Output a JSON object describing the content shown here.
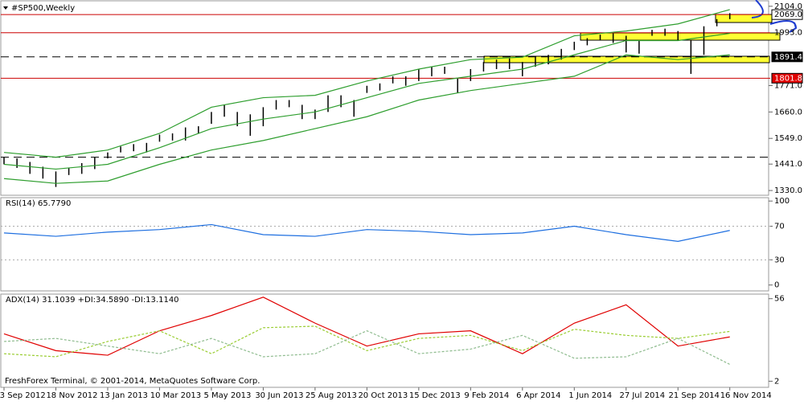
{
  "chart_data": [
    {
      "type": "ohlc",
      "title": "#SP500,Weekly",
      "footer": "FreshForex Terminal, © 2001-2014, MetaQuotes Software Corp.",
      "categories": [
        "23 Sep 2012",
        "18 Nov 2012",
        "13 Jan 2013",
        "10 Mar 2013",
        "5 May 2013",
        "30 Jun 2013",
        "25 Aug 2013",
        "20 Oct 2013",
        "15 Dec 2013",
        "9 Feb 2014",
        "6 Apr 2014",
        "1 Jun 2014",
        "27 Jul 2014",
        "21 Sep 2014",
        "16 Nov 2014"
      ],
      "bars": {
        "color": "#000000",
        "low": [
          1440,
          1425,
          1400,
          1380,
          1345,
          1395,
          1400,
          1420,
          1465,
          1490,
          1495,
          1490,
          1535,
          1540,
          1540,
          1570,
          1610,
          1640,
          1600,
          1560,
          1600,
          1670,
          1680,
          1630,
          1630,
          1660,
          1680,
          1640,
          1740,
          1750,
          1780,
          1770,
          1790,
          1810,
          1820,
          1740,
          1790,
          1830,
          1840,
          1840,
          1810,
          1850,
          1860,
          1880,
          1920,
          1940,
          1960,
          1950,
          1910,
          1905,
          1980,
          1980,
          1960,
          1820,
          1900,
          2020,
          2050
        ],
        "high": [
          1470,
          1465,
          1450,
          1430,
          1410,
          1425,
          1445,
          1470,
          1490,
          1515,
          1525,
          1530,
          1565,
          1570,
          1595,
          1600,
          1660,
          1690,
          1660,
          1650,
          1680,
          1710,
          1710,
          1690,
          1670,
          1730,
          1730,
          1710,
          1770,
          1780,
          1810,
          1810,
          1840,
          1850,
          1850,
          1800,
          1840,
          1870,
          1880,
          1885,
          1870,
          1890,
          1900,
          1925,
          1955,
          1970,
          1985,
          1990,
          1980,
          1960,
          2005,
          2010,
          2000,
          1960,
          2020,
          2050,
          2075
        ]
      },
      "series": [
        {
          "color": "#2e9e2e",
          "values": [
            1490,
            1470,
            1500,
            1570,
            1680,
            1720,
            1730,
            1790,
            1840,
            1880,
            1890,
            1980,
            2000,
            2030,
            2090
          ]
        },
        {
          "color": "#2e9e2e",
          "values": [
            1440,
            1420,
            1440,
            1510,
            1590,
            1630,
            1660,
            1720,
            1780,
            1810,
            1840,
            1900,
            1960,
            1960,
            1990
          ]
        },
        {
          "color": "#2e9e2e",
          "values": [
            1380,
            1360,
            1370,
            1440,
            1500,
            1540,
            1590,
            1640,
            1710,
            1750,
            1780,
            1810,
            1900,
            1880,
            1900
          ]
        }
      ],
      "levels": [
        {
          "value": 2069.0,
          "label": "2069.0",
          "color": "#cc0000",
          "dash": false,
          "label_bg": "#ffffff",
          "label_color": "#000000"
        },
        {
          "value": 1993.0,
          "label": "1993.0",
          "color": "#cc0000",
          "dash": false
        },
        {
          "value": 1891.4,
          "label": "1891.4",
          "color": "#000000",
          "dash": true,
          "label_bg": "#000000",
          "label_color": "#ffffff"
        },
        {
          "value": 1801.8,
          "label": "1801.8",
          "color": "#cc0000",
          "dash": false,
          "label_bg": "#e00000",
          "label_color": "#ffffff"
        },
        {
          "value": 1470,
          "color": "#000000",
          "dash": true
        }
      ],
      "ylim": [
        1310,
        2127
      ],
      "yticks": [
        {
          "value": 2104,
          "label": "2104.0"
        },
        {
          "value": 1771,
          "label": "1771.0"
        },
        {
          "value": 1660,
          "label": "1660.0"
        },
        {
          "value": 1549,
          "label": "1549.0"
        },
        {
          "value": 1441,
          "label": "1441.0"
        },
        {
          "value": 1330,
          "label": "1330.0"
        }
      ]
    },
    {
      "type": "line",
      "title": "RSI(14) 65.7790",
      "series": [
        {
          "color": "#1e6fe0",
          "values": [
            62,
            58,
            63,
            66,
            72,
            60,
            58,
            66,
            64,
            60,
            62,
            70,
            60,
            52,
            65
          ]
        }
      ],
      "ylim": [
        -7,
        104
      ],
      "yticks": [
        100,
        70,
        30,
        0
      ],
      "levels": [
        70,
        30
      ]
    },
    {
      "type": "line",
      "title": "ADX(14) 31.1039 +DI:34.5890 -DI:13.1140",
      "series": [
        {
          "color": "#e00000",
          "values": [
            33,
            22,
            19,
            35,
            45,
            57,
            40,
            25,
            33,
            35,
            20,
            40,
            52,
            25,
            31
          ]
        },
        {
          "color": "#9acd32",
          "dash": true,
          "values": [
            20,
            18,
            28,
            35,
            20,
            37,
            38,
            22,
            30,
            32,
            22,
            36,
            32,
            30,
            34.6
          ]
        },
        {
          "color": "#8fbc8f",
          "dash": true,
          "values": [
            28,
            30,
            25,
            20,
            30,
            18,
            20,
            35,
            20,
            23,
            32,
            17,
            18,
            30,
            13
          ]
        }
      ],
      "ylim": [
        -2,
        59
      ],
      "yticks": [
        56,
        2
      ]
    }
  ]
}
